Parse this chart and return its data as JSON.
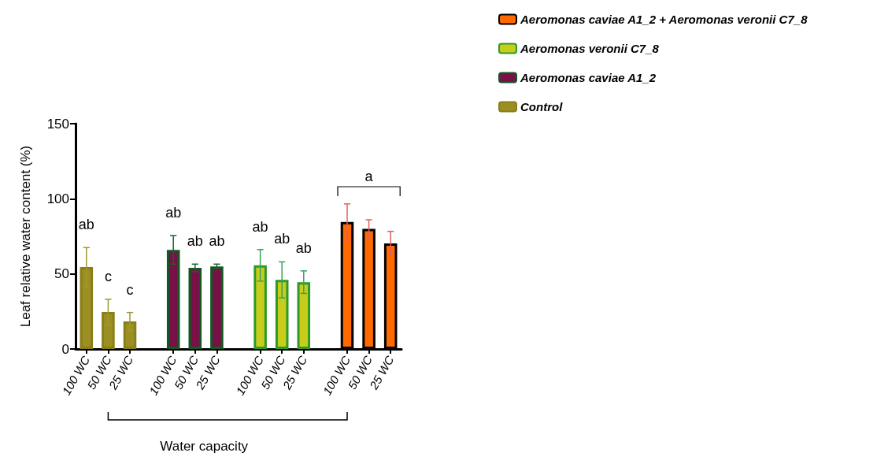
{
  "chart_data": {
    "type": "bar",
    "ylabel": "Leaf relative water content (%)",
    "xlabel": "Water capacity",
    "categories": [
      "100 WC",
      "50 WC",
      "25 WC",
      null,
      "100 WC",
      "50 WC",
      "25 WC",
      null,
      "100 WC",
      "50 WC",
      "25 WC",
      null,
      "100 WC",
      "50 WC",
      "25 WC"
    ],
    "series": [
      {
        "name": "Aeromonas caviae A1_2 + Aeromonas veronii C7_8",
        "color": "#ff6a00",
        "values": [
          null,
          null,
          null,
          null,
          null,
          null,
          null,
          null,
          null,
          null,
          null,
          null,
          84.6,
          80,
          70.3
        ],
        "errors": [
          null,
          null,
          null,
          null,
          null,
          null,
          null,
          null,
          null,
          null,
          null,
          null,
          12,
          6,
          8
        ],
        "value_labels": [
          null,
          null,
          null,
          null,
          null,
          null,
          null,
          null,
          null,
          null,
          null,
          null,
          null,
          null,
          null
        ]
      },
      {
        "name": "Aeromonas veronii C7_8",
        "color": "#c8cc1a",
        "values": [
          null,
          null,
          null,
          null,
          null,
          null,
          null,
          null,
          55.7,
          46,
          44.5,
          null,
          null,
          null,
          null
        ],
        "errors": [
          null,
          null,
          null,
          null,
          null,
          null,
          null,
          null,
          10.5,
          12,
          7.5,
          null,
          null,
          null,
          null
        ],
        "value_labels": [
          null,
          null,
          null,
          null,
          null,
          null,
          null,
          null,
          "ab",
          "ab",
          "ab",
          null,
          null,
          null,
          null
        ]
      },
      {
        "name": "Aeromonas caviae A1_2",
        "color": "#7a1048",
        "values": [
          null,
          null,
          null,
          null,
          66,
          54,
          55,
          null,
          null,
          null,
          null,
          null,
          null,
          null,
          null
        ],
        "errors": [
          null,
          null,
          null,
          null,
          9.5,
          2.5,
          1.5,
          null,
          null,
          null,
          null,
          null,
          null,
          null,
          null
        ],
        "value_labels": [
          null,
          null,
          null,
          null,
          "ab",
          "ab",
          "ab",
          null,
          null,
          null,
          null,
          null,
          null,
          null,
          null
        ]
      },
      {
        "name": "Control",
        "color": "#9c8f22",
        "values": [
          54.5,
          24.6,
          18.3,
          null,
          null,
          null,
          null,
          null,
          null,
          null,
          null,
          null,
          null,
          null,
          null
        ],
        "errors": [
          13,
          8.5,
          6,
          null,
          null,
          null,
          null,
          null,
          null,
          null,
          null,
          null,
          null,
          null,
          null
        ],
        "value_labels": [
          "ab",
          "c",
          "c",
          null,
          null,
          null,
          null,
          null,
          null,
          null,
          null,
          null,
          null,
          null,
          null
        ]
      }
    ],
    "annotations": [
      "a"
    ],
    "ylim": [
      0,
      150
    ],
    "yticks": [
      0,
      50,
      100,
      150
    ],
    "grid": false,
    "legend": "top right"
  }
}
